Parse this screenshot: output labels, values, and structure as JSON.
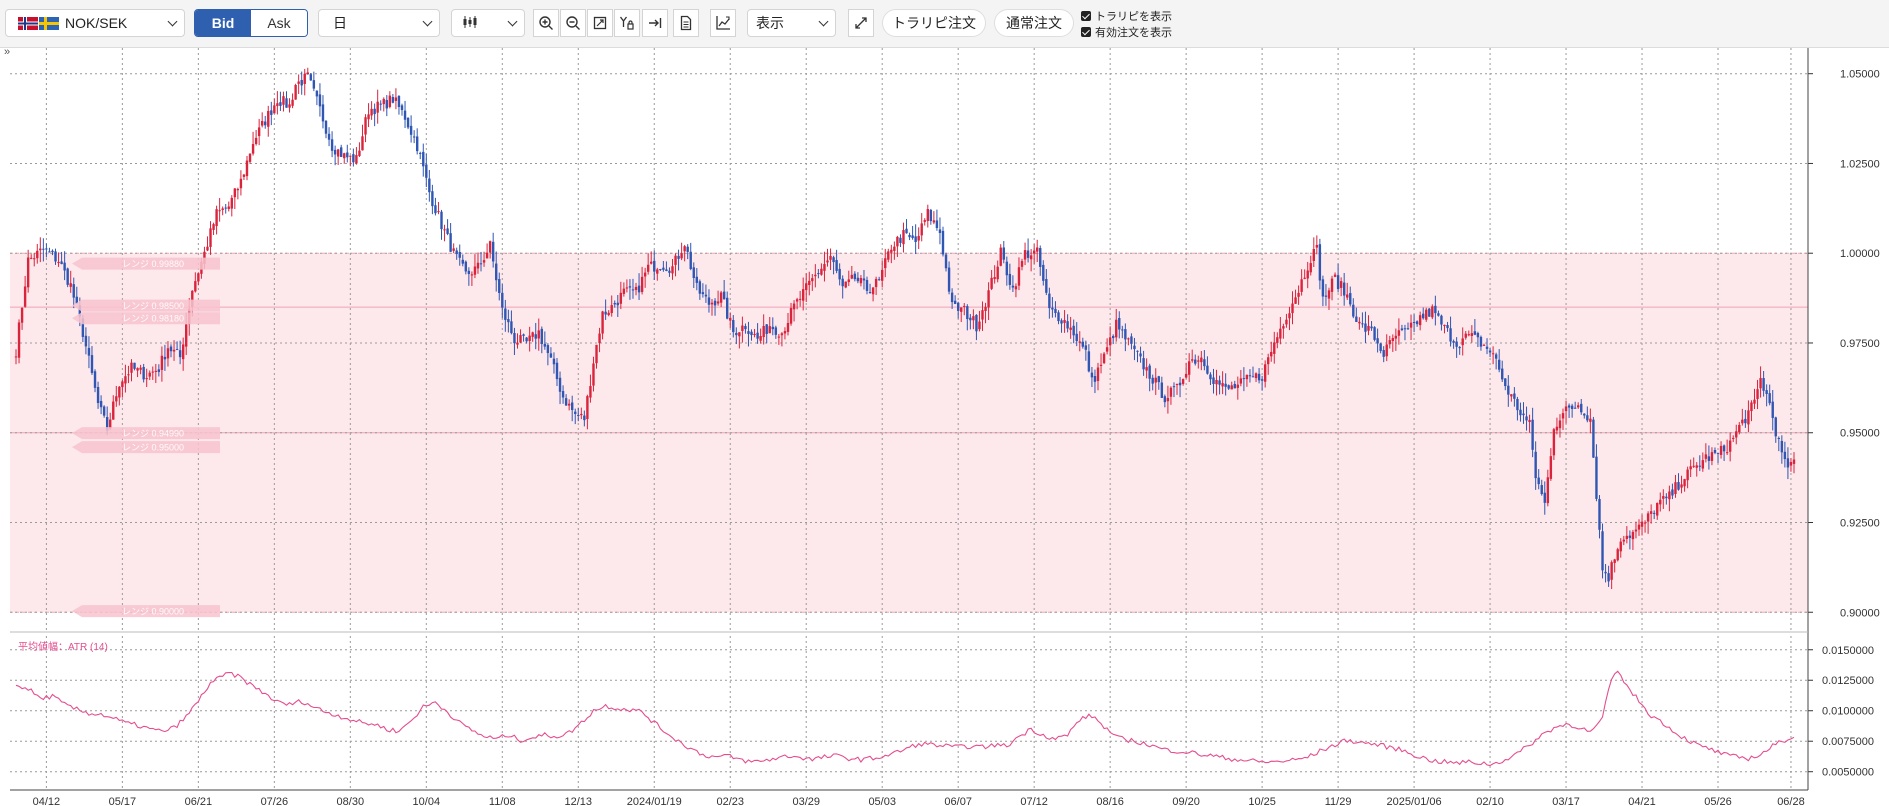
{
  "toolbar": {
    "pair": "NOK/SEK",
    "bid_label": "Bid",
    "ask_label": "Ask",
    "timeframe": "日",
    "display_label": "表示",
    "trail_order_label": "トラリピ注文",
    "normal_order_label": "通常注文",
    "show_trail_label": "トラリピを表示",
    "show_valid_orders_label": "有効注文を表示",
    "show_trail_checked": true,
    "show_valid_orders_checked": true
  },
  "chart_data": {
    "type": "candlestick",
    "price_axis": {
      "ylim": [
        0.8945,
        1.0566
      ],
      "ticks": [
        "1.05000",
        "1.02500",
        "1.00000",
        "0.97500",
        "0.95000",
        "0.92500",
        "0.90000"
      ]
    },
    "x_ticks": [
      {
        "label": "04/12",
        "i": 10
      },
      {
        "label": "05/17",
        "i": 35
      },
      {
        "label": "06/21",
        "i": 60
      },
      {
        "label": "07/26",
        "i": 85
      },
      {
        "label": "08/30",
        "i": 110
      },
      {
        "label": "10/04",
        "i": 135
      },
      {
        "label": "11/08",
        "i": 160
      },
      {
        "label": "12/13",
        "i": 185
      },
      {
        "label": "2024/01/19",
        "i": 210
      },
      {
        "label": "02/23",
        "i": 235
      },
      {
        "label": "03/29",
        "i": 260
      },
      {
        "label": "05/03",
        "i": 285
      },
      {
        "label": "06/07",
        "i": 310
      },
      {
        "label": "07/12",
        "i": 335
      },
      {
        "label": "08/16",
        "i": 360
      },
      {
        "label": "09/20",
        "i": 385
      },
      {
        "label": "10/25",
        "i": 410
      },
      {
        "label": "11/29",
        "i": 435
      },
      {
        "label": "2025/01/06",
        "i": 460
      },
      {
        "label": "02/10",
        "i": 485
      },
      {
        "label": "03/17",
        "i": 510
      },
      {
        "label": "04/21",
        "i": 535
      },
      {
        "label": "05/26",
        "i": 560
      },
      {
        "label": "06/28",
        "i": 584
      }
    ],
    "candles_count": 586,
    "close_path": [
      [
        0,
        0.973
      ],
      [
        4,
        0.998
      ],
      [
        9,
        1.001
      ],
      [
        14,
        0.998
      ],
      [
        18,
        0.991
      ],
      [
        22,
        0.978
      ],
      [
        27,
        0.958
      ],
      [
        30,
        0.951
      ],
      [
        34,
        0.964
      ],
      [
        38,
        0.968
      ],
      [
        43,
        0.966
      ],
      [
        47,
        0.968
      ],
      [
        50,
        0.974
      ],
      [
        54,
        0.971
      ],
      [
        58,
        0.99
      ],
      [
        62,
        1.0
      ],
      [
        66,
        1.011
      ],
      [
        70,
        1.013
      ],
      [
        74,
        1.02
      ],
      [
        78,
        1.031
      ],
      [
        82,
        1.037
      ],
      [
        86,
        1.043
      ],
      [
        90,
        1.041
      ],
      [
        92,
        1.047
      ],
      [
        96,
        1.049
      ],
      [
        100,
        1.04
      ],
      [
        104,
        1.03
      ],
      [
        108,
        1.027
      ],
      [
        112,
        1.026
      ],
      [
        116,
        1.04
      ],
      [
        120,
        1.041
      ],
      [
        124,
        1.043
      ],
      [
        128,
        1.038
      ],
      [
        132,
        1.03
      ],
      [
        136,
        1.017
      ],
      [
        140,
        1.008
      ],
      [
        144,
        1.0
      ],
      [
        148,
        0.994
      ],
      [
        152,
        0.996
      ],
      [
        156,
        1.002
      ],
      [
        160,
        0.984
      ],
      [
        164,
        0.976
      ],
      [
        168,
        0.975
      ],
      [
        172,
        0.978
      ],
      [
        176,
        0.97
      ],
      [
        180,
        0.96
      ],
      [
        184,
        0.955
      ],
      [
        187,
        0.954
      ],
      [
        190,
        0.97
      ],
      [
        193,
        0.983
      ],
      [
        196,
        0.985
      ],
      [
        200,
        0.989
      ],
      [
        204,
        0.989
      ],
      [
        208,
        0.996
      ],
      [
        212,
        0.997
      ],
      [
        216,
        0.996
      ],
      [
        220,
        1.003
      ],
      [
        224,
        0.99
      ],
      [
        228,
        0.986
      ],
      [
        232,
        0.988
      ],
      [
        236,
        0.978
      ],
      [
        240,
        0.98
      ],
      [
        244,
        0.976
      ],
      [
        248,
        0.98
      ],
      [
        252,
        0.978
      ],
      [
        256,
        0.985
      ],
      [
        260,
        0.99
      ],
      [
        264,
        0.995
      ],
      [
        268,
        0.999
      ],
      [
        272,
        0.99
      ],
      [
        276,
        0.993
      ],
      [
        280,
        0.99
      ],
      [
        284,
        0.992
      ],
      [
        288,
        1.002
      ],
      [
        292,
        1.005
      ],
      [
        296,
        1.003
      ],
      [
        300,
        1.011
      ],
      [
        304,
        1.006
      ],
      [
        308,
        0.985
      ],
      [
        312,
        0.984
      ],
      [
        316,
        0.98
      ],
      [
        320,
        0.989
      ],
      [
        324,
        1.0
      ],
      [
        328,
        0.99
      ],
      [
        332,
        1.0
      ],
      [
        336,
        1.0
      ],
      [
        340,
        0.984
      ],
      [
        344,
        0.982
      ],
      [
        348,
        0.978
      ],
      [
        352,
        0.972
      ],
      [
        354,
        0.964
      ],
      [
        358,
        0.971
      ],
      [
        362,
        0.98
      ],
      [
        366,
        0.975
      ],
      [
        370,
        0.97
      ],
      [
        374,
        0.965
      ],
      [
        378,
        0.96
      ],
      [
        382,
        0.962
      ],
      [
        386,
        0.97
      ],
      [
        390,
        0.971
      ],
      [
        394,
        0.965
      ],
      [
        398,
        0.962
      ],
      [
        402,
        0.963
      ],
      [
        406,
        0.965
      ],
      [
        410,
        0.966
      ],
      [
        414,
        0.975
      ],
      [
        418,
        0.983
      ],
      [
        422,
        0.99
      ],
      [
        426,
        0.999
      ],
      [
        428,
        1.001
      ],
      [
        430,
        0.987
      ],
      [
        434,
        0.993
      ],
      [
        438,
        0.988
      ],
      [
        442,
        0.98
      ],
      [
        446,
        0.978
      ],
      [
        450,
        0.972
      ],
      [
        454,
        0.977
      ],
      [
        458,
        0.978
      ],
      [
        462,
        0.982
      ],
      [
        466,
        0.984
      ],
      [
        470,
        0.979
      ],
      [
        474,
        0.975
      ],
      [
        478,
        0.977
      ],
      [
        482,
        0.975
      ],
      [
        486,
        0.972
      ],
      [
        490,
        0.963
      ],
      [
        494,
        0.957
      ],
      [
        498,
        0.952
      ],
      [
        500,
        0.938
      ],
      [
        503,
        0.93
      ],
      [
        506,
        0.952
      ],
      [
        510,
        0.956
      ],
      [
        514,
        0.958
      ],
      [
        518,
        0.954
      ],
      [
        522,
        0.912
      ],
      [
        524,
        0.91
      ],
      [
        528,
        0.921
      ],
      [
        532,
        0.922
      ],
      [
        536,
        0.925
      ],
      [
        540,
        0.93
      ],
      [
        544,
        0.932
      ],
      [
        548,
        0.937
      ],
      [
        552,
        0.94
      ],
      [
        556,
        0.943
      ],
      [
        560,
        0.944
      ],
      [
        564,
        0.947
      ],
      [
        568,
        0.953
      ],
      [
        572,
        0.958
      ],
      [
        574,
        0.965
      ],
      [
        577,
        0.958
      ],
      [
        580,
        0.947
      ],
      [
        582,
        0.941
      ],
      [
        585,
        0.941
      ]
    ],
    "trail_band": {
      "high": 1.0,
      "low": 0.9,
      "lines": [
        0.985,
        0.95
      ]
    },
    "trail_tags": [
      {
        "price": 0.9971,
        "text": "レンジ 0.99880"
      },
      {
        "price": 0.9854,
        "text": "レンジ 0.98500"
      },
      {
        "price": 0.9819,
        "text": "レンジ 0.98180"
      },
      {
        "price": 0.9499,
        "text": "レンジ 0.94990"
      },
      {
        "price": 0.946,
        "text": "レンジ 0.95000"
      },
      {
        "price": 0.9003,
        "text": "レンジ 0.90000"
      }
    ],
    "atr": {
      "name": "平均値幅：ATR (14)",
      "ylim": [
        0.0035,
        0.0158
      ],
      "ticks": [
        "0.0150000",
        "0.0125000",
        "0.0100000",
        "0.0075000",
        "0.0050000"
      ],
      "path": [
        [
          0,
          0.0121
        ],
        [
          4,
          0.0118
        ],
        [
          8,
          0.011
        ],
        [
          12,
          0.0112
        ],
        [
          16,
          0.0105
        ],
        [
          20,
          0.0101
        ],
        [
          24,
          0.0098
        ],
        [
          28,
          0.0097
        ],
        [
          32,
          0.0094
        ],
        [
          36,
          0.009
        ],
        [
          40,
          0.0088
        ],
        [
          44,
          0.0085
        ],
        [
          48,
          0.0083
        ],
        [
          52,
          0.0086
        ],
        [
          56,
          0.0095
        ],
        [
          60,
          0.0108
        ],
        [
          64,
          0.0123
        ],
        [
          68,
          0.0128
        ],
        [
          70,
          0.0131
        ],
        [
          74,
          0.0127
        ],
        [
          78,
          0.012
        ],
        [
          82,
          0.0114
        ],
        [
          86,
          0.0107
        ],
        [
          90,
          0.0105
        ],
        [
          94,
          0.0108
        ],
        [
          98,
          0.0103
        ],
        [
          102,
          0.0099
        ],
        [
          106,
          0.0096
        ],
        [
          110,
          0.0093
        ],
        [
          114,
          0.009
        ],
        [
          118,
          0.0089
        ],
        [
          122,
          0.0085
        ],
        [
          126,
          0.0083
        ],
        [
          130,
          0.0092
        ],
        [
          134,
          0.0103
        ],
        [
          138,
          0.0107
        ],
        [
          142,
          0.0099
        ],
        [
          146,
          0.009
        ],
        [
          150,
          0.0084
        ],
        [
          154,
          0.0079
        ],
        [
          158,
          0.0077
        ],
        [
          162,
          0.008
        ],
        [
          166,
          0.0076
        ],
        [
          170,
          0.0078
        ],
        [
          174,
          0.008
        ],
        [
          178,
          0.0079
        ],
        [
          182,
          0.0082
        ],
        [
          186,
          0.009
        ],
        [
          190,
          0.01
        ],
        [
          194,
          0.0104
        ],
        [
          198,
          0.0102
        ],
        [
          202,
          0.0101
        ],
        [
          206,
          0.0099
        ],
        [
          210,
          0.009
        ],
        [
          214,
          0.0082
        ],
        [
          218,
          0.0075
        ],
        [
          222,
          0.0069
        ],
        [
          226,
          0.0064
        ],
        [
          230,
          0.0062
        ],
        [
          234,
          0.0063
        ],
        [
          238,
          0.006
        ],
        [
          242,
          0.0058
        ],
        [
          246,
          0.0059
        ],
        [
          250,
          0.0061
        ],
        [
          254,
          0.0063
        ],
        [
          258,
          0.0062
        ],
        [
          262,
          0.006
        ],
        [
          266,
          0.0062
        ],
        [
          270,
          0.0063
        ],
        [
          274,
          0.0061
        ],
        [
          278,
          0.006
        ],
        [
          282,
          0.0061
        ],
        [
          286,
          0.0063
        ],
        [
          290,
          0.0066
        ],
        [
          294,
          0.007
        ],
        [
          298,
          0.0073
        ],
        [
          302,
          0.0072
        ],
        [
          306,
          0.0071
        ],
        [
          310,
          0.007
        ],
        [
          314,
          0.0071
        ],
        [
          318,
          0.007
        ],
        [
          322,
          0.0072
        ],
        [
          326,
          0.0071
        ],
        [
          330,
          0.0079
        ],
        [
          334,
          0.0085
        ],
        [
          338,
          0.008
        ],
        [
          342,
          0.0077
        ],
        [
          346,
          0.008
        ],
        [
          350,
          0.0093
        ],
        [
          354,
          0.0096
        ],
        [
          358,
          0.0087
        ],
        [
          362,
          0.0078
        ],
        [
          366,
          0.0076
        ],
        [
          370,
          0.0074
        ],
        [
          374,
          0.0071
        ],
        [
          378,
          0.0068
        ],
        [
          382,
          0.0067
        ],
        [
          386,
          0.0066
        ],
        [
          390,
          0.0064
        ],
        [
          394,
          0.0063
        ],
        [
          398,
          0.0061
        ],
        [
          402,
          0.006
        ],
        [
          406,
          0.0059
        ],
        [
          410,
          0.0058
        ],
        [
          414,
          0.0058
        ],
        [
          418,
          0.0059
        ],
        [
          422,
          0.006
        ],
        [
          426,
          0.0063
        ],
        [
          430,
          0.0068
        ],
        [
          434,
          0.0072
        ],
        [
          438,
          0.0076
        ],
        [
          442,
          0.0074
        ],
        [
          446,
          0.0073
        ],
        [
          450,
          0.0071
        ],
        [
          454,
          0.0069
        ],
        [
          458,
          0.0066
        ],
        [
          462,
          0.0062
        ],
        [
          466,
          0.0059
        ],
        [
          470,
          0.0058
        ],
        [
          474,
          0.0057
        ],
        [
          478,
          0.0058
        ],
        [
          482,
          0.0057
        ],
        [
          486,
          0.0056
        ],
        [
          490,
          0.006
        ],
        [
          494,
          0.0065
        ],
        [
          498,
          0.0072
        ],
        [
          502,
          0.008
        ],
        [
          506,
          0.0086
        ],
        [
          510,
          0.0089
        ],
        [
          514,
          0.0087
        ],
        [
          518,
          0.0082
        ],
        [
          522,
          0.0093
        ],
        [
          524,
          0.0118
        ],
        [
          526,
          0.0131
        ],
        [
          528,
          0.013
        ],
        [
          530,
          0.012
        ],
        [
          534,
          0.0108
        ],
        [
          538,
          0.0096
        ],
        [
          542,
          0.009
        ],
        [
          546,
          0.0082
        ],
        [
          550,
          0.0076
        ],
        [
          554,
          0.0071
        ],
        [
          558,
          0.0068
        ],
        [
          562,
          0.0064
        ],
        [
          566,
          0.0062
        ],
        [
          570,
          0.0061
        ],
        [
          574,
          0.0064
        ],
        [
          578,
          0.0071
        ],
        [
          582,
          0.0076
        ],
        [
          585,
          0.0079
        ]
      ]
    }
  }
}
